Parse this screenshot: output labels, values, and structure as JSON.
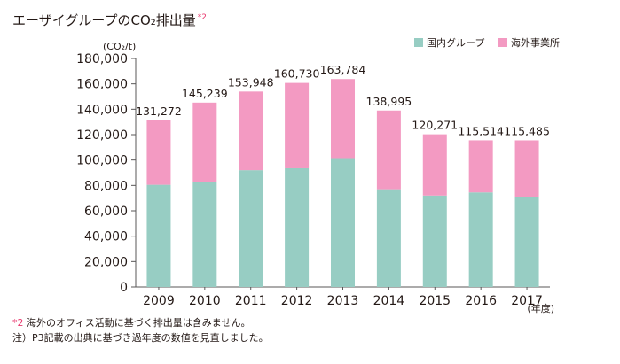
{
  "title": "エーザイグループのCO₂排出量",
  "title_note_mark": "*2",
  "notes": [
    {
      "mark": "*2",
      "text": "海外のオフィス活動に基づく排出量は含みません。"
    },
    {
      "mark": "",
      "text": "注）P3記載の出典に基づき過年度の数値を見直しました。"
    }
  ],
  "colors": {
    "domestic": "#97cdc3",
    "overseas": "#f39ac2",
    "axis": "#595757"
  },
  "chart_data": {
    "type": "bar",
    "stacked": true,
    "ylabel": "(CO₂/t)",
    "xlabel": "(年度)",
    "ylim": [
      0,
      180000
    ],
    "yticks": [
      "0",
      "20,000",
      "40,000",
      "60,000",
      "80,000",
      "100,000",
      "120,000",
      "140,000",
      "160,000",
      "180,000"
    ],
    "categories": [
      "2009",
      "2010",
      "2011",
      "2012",
      "2013",
      "2014",
      "2015",
      "2016",
      "2017"
    ],
    "series": [
      {
        "name": "国内グループ",
        "values": [
          80500,
          82500,
          92000,
          93500,
          101500,
          77000,
          72000,
          74500,
          70500
        ]
      },
      {
        "name": "海外事業所",
        "values": [
          50772,
          62739,
          61948,
          67230,
          62284,
          61995,
          48271,
          41014,
          44985
        ]
      }
    ],
    "totals": [
      "131,272",
      "145,239",
      "153,948",
      "160,730",
      "163,784",
      "138,995",
      "120,271",
      "115,514",
      "115,485"
    ],
    "legend_position": "top-right"
  }
}
